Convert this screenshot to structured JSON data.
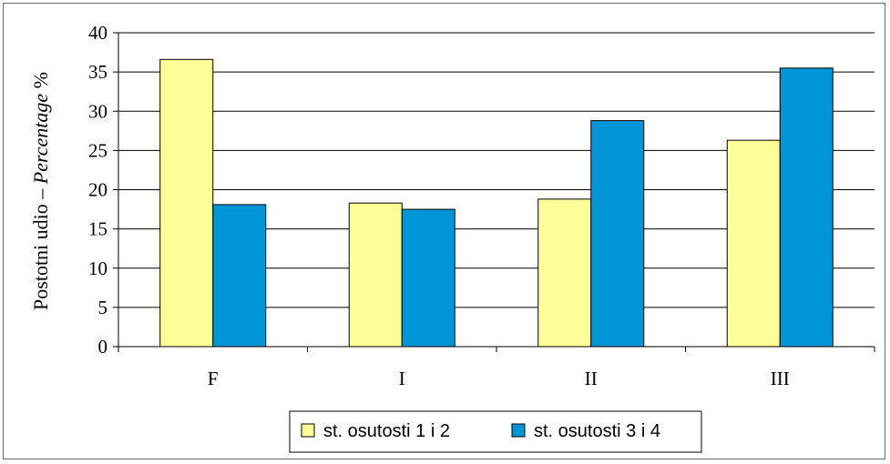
{
  "chart_data": {
    "type": "bar",
    "categories": [
      "F",
      "I",
      "II",
      "III"
    ],
    "series": [
      {
        "name": "st. osutosti 1 i 2",
        "values": [
          36.6,
          18.3,
          18.8,
          26.3
        ],
        "color": "#ffff99"
      },
      {
        "name": "st. osutosti 3 i 4",
        "values": [
          18.1,
          17.5,
          28.8,
          35.5
        ],
        "color": "#0096d6"
      }
    ],
    "ylabel_plain": "Postotni udio – ",
    "ylabel_italic": "Percentage",
    "ylabel_suffix": " %",
    "ylim": [
      0,
      40
    ],
    "yticks": [
      0,
      5,
      10,
      15,
      20,
      25,
      30,
      35,
      40
    ],
    "grid": true,
    "legend_position": "bottom"
  }
}
